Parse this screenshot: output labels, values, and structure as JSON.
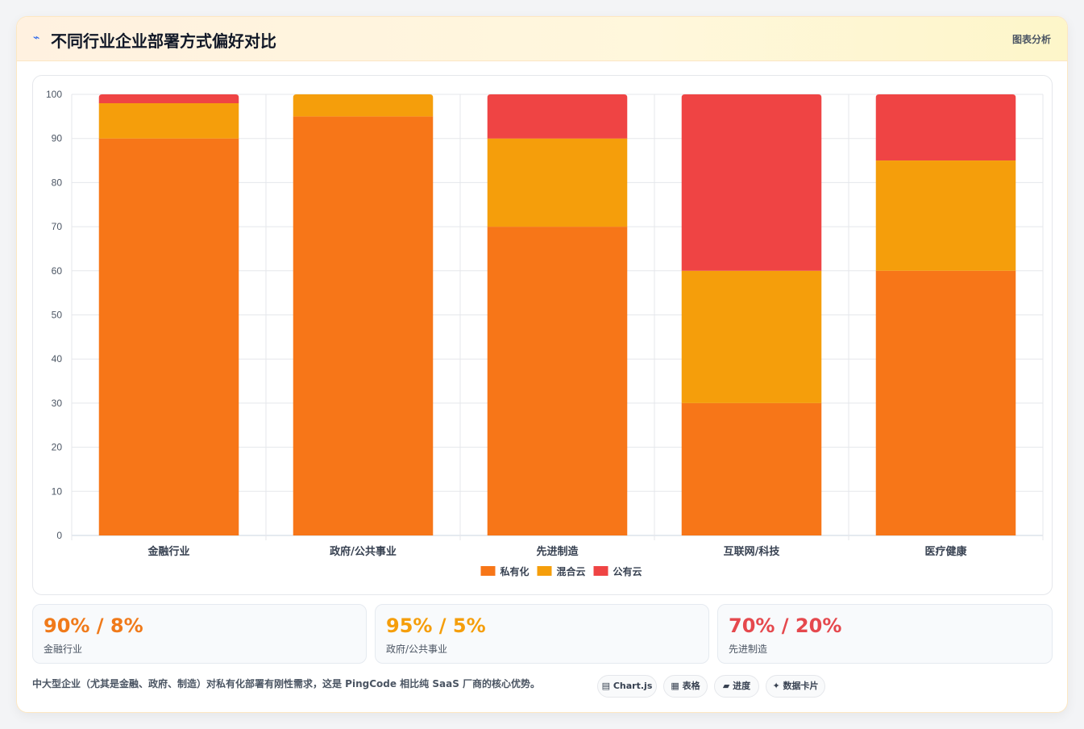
{
  "header": {
    "icon": "line-chart-icon",
    "title": "不同行业企业部署方式偏好对比",
    "action": "图表分析"
  },
  "colors": {
    "private": "#f77618",
    "hybrid": "#f59e0b",
    "public": "#ef4444"
  },
  "chart_data": {
    "type": "bar",
    "stacked": true,
    "title": "",
    "xlabel": "",
    "ylabel": "",
    "ylim": [
      0,
      100
    ],
    "yticks": [
      0,
      10,
      20,
      30,
      40,
      50,
      60,
      70,
      80,
      90,
      100
    ],
    "grid": true,
    "legend_position": "bottom",
    "categories": [
      "金融行业",
      "政府/公共事业",
      "先进制造",
      "互联网/科技",
      "医疗健康"
    ],
    "series": [
      {
        "name": "私有化",
        "color": "#f77618",
        "values": [
          90,
          95,
          70,
          30,
          60
        ]
      },
      {
        "name": "混合云",
        "color": "#f59e0b",
        "values": [
          8,
          5,
          20,
          30,
          25
        ]
      },
      {
        "name": "公有云",
        "color": "#ef4444",
        "values": [
          2,
          0,
          10,
          40,
          15
        ]
      }
    ]
  },
  "stats": [
    {
      "value": "90% / 8%",
      "label": "金融行业",
      "color": "#f07a1a"
    },
    {
      "value": "95% / 5%",
      "label": "政府/公共事业",
      "color": "#f59e0b"
    },
    {
      "value": "70% / 20%",
      "label": "先进制造",
      "color": "#e5484d"
    }
  ],
  "footer": {
    "note": "中大型企业（尤其是金融、政府、制造）对私有化部署有刚性需求，这是 PingCode 相比纯 SaaS 厂商的核心优势。",
    "tags": [
      {
        "icon": "bar-chart-icon",
        "glyph": "▤",
        "label": "Chart.js"
      },
      {
        "icon": "table-icon",
        "glyph": "▦",
        "label": "表格"
      },
      {
        "icon": "progress-icon",
        "glyph": "▰",
        "label": "进度"
      },
      {
        "icon": "sparkle-icon",
        "glyph": "✦",
        "label": "数据卡片"
      }
    ]
  }
}
